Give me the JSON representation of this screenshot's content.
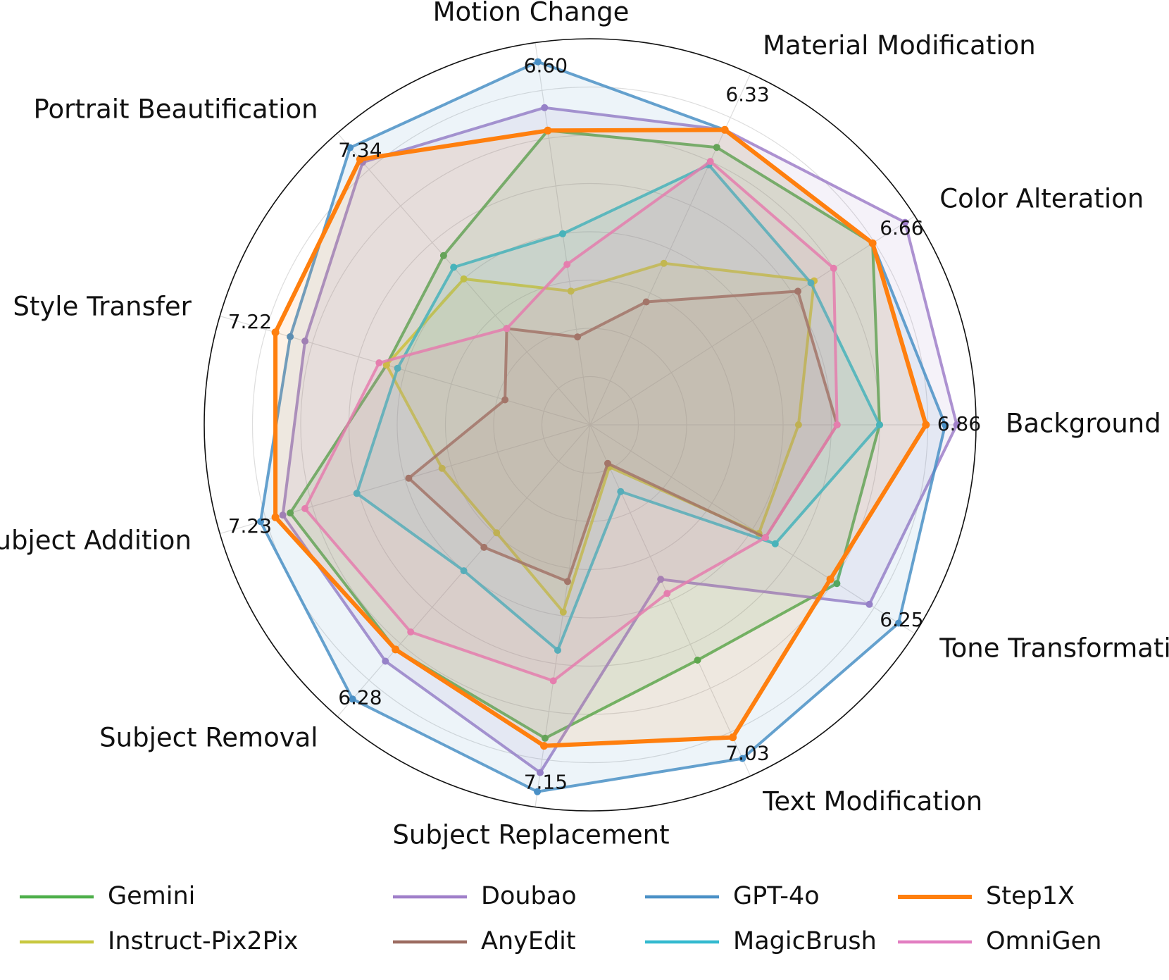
{
  "chart_data": {
    "type": "radar",
    "categories": [
      "Background Change",
      "Color Alteration",
      "Material Modification",
      "Motion Change",
      "Portrait Beautification",
      "Style Transfer",
      "Subject Addition",
      "Subject Removal",
      "Subject Replacement",
      "Text Modification",
      "Tone Transformation"
    ],
    "max_labels": [
      "6.86",
      "6.66",
      "6.33",
      "6.60",
      "7.34",
      "7.22",
      "7.23",
      "6.28",
      "7.15",
      "7.03",
      "6.25"
    ],
    "scale": {
      "min": 0,
      "max": 1,
      "rings": 8,
      "note_values": "normalized fraction of per-category maximum radius"
    },
    "series": [
      {
        "name": "Gemini",
        "color": "#4daf4a",
        "values": [
          0.75,
          0.87,
          0.79,
          0.77,
          0.58,
          0.55,
          0.81,
          0.77,
          0.82,
          0.67,
          0.76
        ]
      },
      {
        "name": "Doubao",
        "color": "#9f7fc9",
        "values": [
          0.95,
          0.97,
          0.84,
          0.83,
          0.9,
          0.77,
          0.83,
          0.81,
          0.91,
          0.44,
          0.86
        ]
      },
      {
        "name": "GPT-4o",
        "color": "#4a90c6",
        "values": [
          0.92,
          0.87,
          0.84,
          0.95,
          0.95,
          0.81,
          0.89,
          0.94,
          0.96,
          0.95,
          0.95
        ]
      },
      {
        "name": "Step1X",
        "color": "#ff7f0e",
        "values": [
          0.87,
          0.87,
          0.84,
          0.77,
          0.91,
          0.85,
          0.85,
          0.77,
          0.84,
          0.89,
          0.74
        ]
      },
      {
        "name": "Instruct-Pix2Pix",
        "color": "#c8c840",
        "values": [
          0.54,
          0.69,
          0.46,
          0.35,
          0.5,
          0.55,
          0.4,
          0.37,
          0.49,
          0.12,
          0.52
        ]
      },
      {
        "name": "AnyEdit",
        "color": "#9c6b60",
        "values": [
          0.64,
          0.64,
          0.35,
          0.23,
          0.33,
          0.23,
          0.49,
          0.42,
          0.41,
          0.11,
          0.54
        ]
      },
      {
        "name": "MagicBrush",
        "color": "#33b9cf",
        "values": [
          0.75,
          0.68,
          0.74,
          0.5,
          0.54,
          0.52,
          0.63,
          0.5,
          0.59,
          0.19,
          0.57
        ]
      },
      {
        "name": "OmniGen",
        "color": "#e27ec1",
        "values": [
          0.64,
          0.75,
          0.75,
          0.42,
          0.33,
          0.57,
          0.77,
          0.71,
          0.67,
          0.48,
          0.54
        ]
      }
    ],
    "legend": {
      "placement": "bottom",
      "columns": 4
    },
    "grid": true
  }
}
